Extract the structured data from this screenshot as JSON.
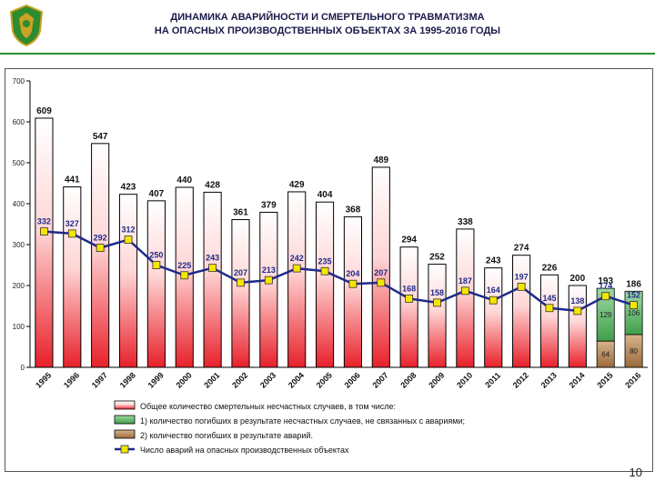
{
  "header": {
    "title_line1": "ДИНАМИКА АВАРИЙНОСТИ И СМЕРТЕЛЬНОГО ТРАВМАТИЗМА",
    "title_line2": "НА ОПАСНЫХ ПРОИЗВОДСТВЕННЫХ ОБЪЕКТАХ ЗА 1995-2016 ГОДЫ",
    "logo_icon": "emblem-icon"
  },
  "page_number": "10",
  "colors": {
    "bar_total": "#e8202a",
    "bar_non_accident": "#3fa04a",
    "bar_accident": "#9a6a3a",
    "line": "#1f2a8a",
    "marker": "#f5e600",
    "value_text": "#1f2a8a",
    "divider": "#2e8b2e"
  },
  "chart_data": {
    "type": "bar",
    "categories": [
      "1995",
      "1996",
      "1997",
      "1998",
      "1999",
      "2000",
      "2001",
      "2002",
      "2003",
      "2004",
      "2005",
      "2006",
      "2007",
      "2008",
      "2009",
      "2010",
      "2011",
      "2012",
      "2013",
      "2014",
      "2015",
      "2016"
    ],
    "ylim": [
      0,
      700
    ],
    "yticks": [
      0,
      100,
      200,
      300,
      400,
      500,
      600,
      700
    ],
    "grid": false,
    "legend_position": "bottom",
    "series": [
      {
        "name": "Общее количество смертельных несчастных случаев, в том числе:",
        "kind": "bar",
        "values": [
          609,
          441,
          547,
          423,
          407,
          440,
          428,
          361,
          379,
          429,
          404,
          368,
          489,
          294,
          252,
          338,
          243,
          274,
          226,
          200,
          193,
          186
        ]
      },
      {
        "name": "1) количество погибших в результате несчастных случаев, не связанных с авариями;",
        "kind": "stack",
        "values": [
          null,
          null,
          null,
          null,
          null,
          null,
          null,
          null,
          null,
          null,
          null,
          null,
          null,
          null,
          null,
          null,
          null,
          null,
          null,
          null,
          129,
          106
        ]
      },
      {
        "name": "2) количество погибших в результате аварий.",
        "kind": "stack",
        "values": [
          null,
          null,
          null,
          null,
          null,
          null,
          null,
          null,
          null,
          null,
          null,
          null,
          null,
          null,
          null,
          null,
          null,
          null,
          null,
          null,
          64,
          80
        ]
      },
      {
        "name": "Число аварий на опасных производственных объектах",
        "kind": "line",
        "values": [
          332,
          327,
          292,
          312,
          250,
          225,
          243,
          207,
          213,
          242,
          235,
          204,
          207,
          168,
          158,
          187,
          164,
          197,
          145,
          138,
          174,
          152
        ]
      }
    ]
  }
}
